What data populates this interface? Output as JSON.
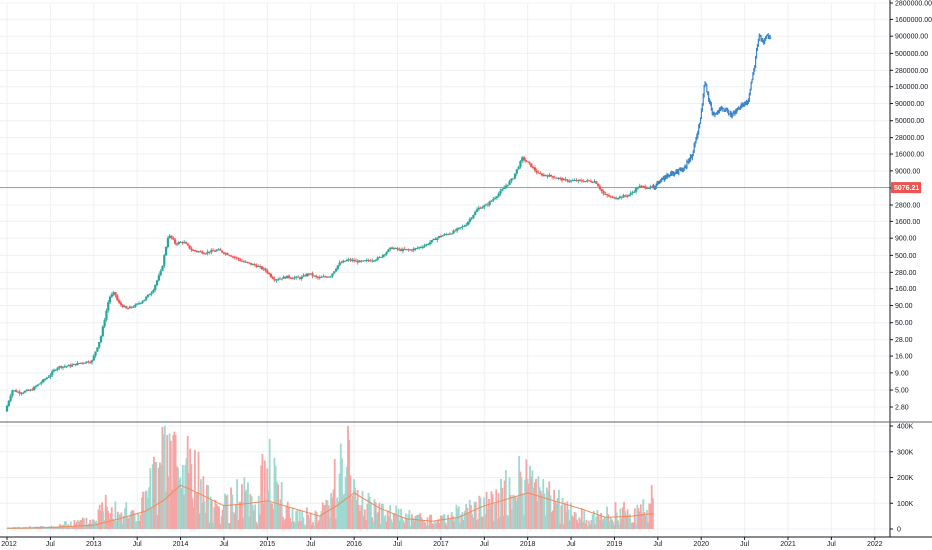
{
  "chart_data": {
    "type": "candlestick",
    "title": "",
    "price_axis": {
      "scale": "log",
      "ticks": [
        2800000,
        1600000,
        900000,
        500000,
        280000,
        160000,
        90000,
        50000,
        28000,
        16000,
        9000,
        5000,
        2800,
        1600,
        900,
        500,
        280,
        160,
        90,
        50,
        28,
        16,
        9,
        5,
        2.8
      ],
      "tick_labels": [
        "2800000.00",
        "1600000.00",
        "900000.00",
        "500000.00",
        "280000.00",
        "160000.00",
        "90000.00",
        "50000.00",
        "28000.00",
        "16000.00",
        "9000.00",
        "5000.00",
        "2800.00",
        "1600.00",
        "900.00",
        "500.00",
        "280.00",
        "160.00",
        "90.00",
        "50.00",
        "28.00",
        "16.00",
        "9.00",
        "5.00",
        "2.80"
      ]
    },
    "current_price": {
      "value": 5076.21,
      "label": "5076.21",
      "color": "#ef5350"
    },
    "volume_axis": {
      "ticks": [
        400000,
        300000,
        200000,
        100000,
        0
      ],
      "tick_labels": [
        "400K",
        "300K",
        "200K",
        "100K",
        "0"
      ]
    },
    "x_axis": {
      "labels": [
        "2012",
        "Jul",
        "2013",
        "Jul",
        "2014",
        "Jul",
        "2015",
        "Jul",
        "2016",
        "Jul",
        "2017",
        "Jul",
        "2018",
        "Jul",
        "2019",
        "Jul",
        "2020",
        "Jul",
        "2021",
        "Jul",
        "2022"
      ],
      "dates": [
        2012.0,
        2012.5,
        2013.0,
        2013.5,
        2014.0,
        2014.5,
        2015.0,
        2015.5,
        2016.0,
        2016.5,
        2017.0,
        2017.5,
        2018.0,
        2018.5,
        2019.0,
        2019.5,
        2020.0,
        2020.5,
        2021.0,
        2021.5,
        2022.0
      ]
    },
    "price_series": {
      "dates": [
        2012.0,
        2012.08,
        2012.17,
        2012.3,
        2012.5,
        2012.6,
        2012.75,
        2012.9,
        2013.0,
        2013.1,
        2013.2,
        2013.26,
        2013.3,
        2013.4,
        2013.5,
        2013.6,
        2013.7,
        2013.8,
        2013.88,
        2013.92,
        2013.96,
        2014.05,
        2014.15,
        2014.3,
        2014.45,
        2014.6,
        2014.75,
        2014.9,
        2015.0,
        2015.1,
        2015.25,
        2015.4,
        2015.5,
        2015.6,
        2015.75,
        2015.85,
        2015.95,
        2016.1,
        2016.3,
        2016.45,
        2016.55,
        2016.7,
        2016.85,
        2017.0,
        2017.15,
        2017.3,
        2017.45,
        2017.55,
        2017.7,
        2017.85,
        2017.96,
        2018.05,
        2018.15,
        2018.3,
        2018.45,
        2018.6,
        2018.8,
        2018.9,
        2019.0,
        2019.1,
        2019.2,
        2019.3,
        2019.45
      ],
      "values": [
        2.4,
        5.0,
        4.6,
        5.0,
        8.0,
        11.0,
        11.5,
        13.0,
        13.5,
        30.0,
        120.0,
        140.0,
        100.0,
        80.0,
        90.0,
        110.0,
        150.0,
        300.0,
        1000.0,
        900.0,
        750.0,
        800.0,
        600.0,
        550.0,
        600.0,
        500.0,
        400.0,
        350.0,
        300.0,
        220.0,
        240.0,
        230.0,
        270.0,
        230.0,
        250.0,
        380.0,
        430.0,
        400.0,
        450.0,
        650.0,
        600.0,
        610.0,
        720.0,
        950.0,
        1100.0,
        1400.0,
        2500.0,
        2800.0,
        4300.0,
        7000.0,
        14000.0,
        11000.0,
        8000.0,
        7500.0,
        6500.0,
        6400.0,
        6300.0,
        4000.0,
        3600.0,
        3700.0,
        4000.0,
        5300.0,
        5076.21
      ]
    },
    "projection_series": {
      "dates": [
        2019.45,
        2019.55,
        2019.65,
        2019.8,
        2019.9,
        2020.0,
        2020.05,
        2020.1,
        2020.15,
        2020.25,
        2020.35,
        2020.45,
        2020.55,
        2020.62,
        2020.68,
        2020.72,
        2020.76,
        2020.8
      ],
      "values": [
        5076.21,
        6500.0,
        8000.0,
        9500.0,
        15000.0,
        50000.0,
        200000.0,
        100000.0,
        60000.0,
        80000.0,
        60000.0,
        80000.0,
        100000.0,
        300000.0,
        1000000.0,
        700000.0,
        900000.0,
        850000.0
      ]
    },
    "volume_series": {
      "dates": [
        2012.0,
        2012.5,
        2013.0,
        2013.2,
        2013.3,
        2013.5,
        2013.8,
        2013.9,
        2014.0,
        2014.1,
        2014.3,
        2014.5,
        2014.7,
        2014.9,
        2015.0,
        2015.2,
        2015.4,
        2015.6,
        2015.8,
        2015.9,
        2016.0,
        2016.3,
        2016.5,
        2016.8,
        2017.0,
        2017.3,
        2017.5,
        2017.8,
        2018.0,
        2018.2,
        2018.5,
        2018.8,
        2019.0,
        2019.3,
        2019.45
      ],
      "values": [
        5000,
        10000,
        40000,
        150000,
        80000,
        60000,
        280000,
        380000,
        200000,
        320000,
        120000,
        90000,
        150000,
        90000,
        350000,
        80000,
        60000,
        50000,
        200000,
        400000,
        160000,
        70000,
        60000,
        40000,
        40000,
        80000,
        90000,
        180000,
        200000,
        140000,
        70000,
        50000,
        70000,
        80000,
        120000
      ]
    },
    "volume_ma": {
      "dates": [
        2012.0,
        2012.5,
        2013.0,
        2013.3,
        2013.6,
        2013.8,
        2014.0,
        2014.2,
        2014.5,
        2014.8,
        2015.0,
        2015.3,
        2015.6,
        2015.8,
        2016.0,
        2016.3,
        2016.6,
        2016.9,
        2017.2,
        2017.5,
        2017.8,
        2018.0,
        2018.3,
        2018.6,
        2018.9,
        2019.2,
        2019.45
      ],
      "values": [
        3000,
        6000,
        15000,
        40000,
        70000,
        110000,
        170000,
        140000,
        90000,
        100000,
        110000,
        80000,
        50000,
        90000,
        140000,
        80000,
        40000,
        30000,
        45000,
        90000,
        120000,
        140000,
        110000,
        80000,
        45000,
        50000,
        60000
      ]
    },
    "colors": {
      "up": "#26a69a",
      "down": "#ef5350",
      "projection": "#3d85c6",
      "volume_up": "#9ed8cf",
      "volume_down": "#f6a5a4",
      "volume_ma": "#ef8a5a",
      "grid": "#eef0f3",
      "axis_line": "#131722"
    },
    "grid": true
  }
}
